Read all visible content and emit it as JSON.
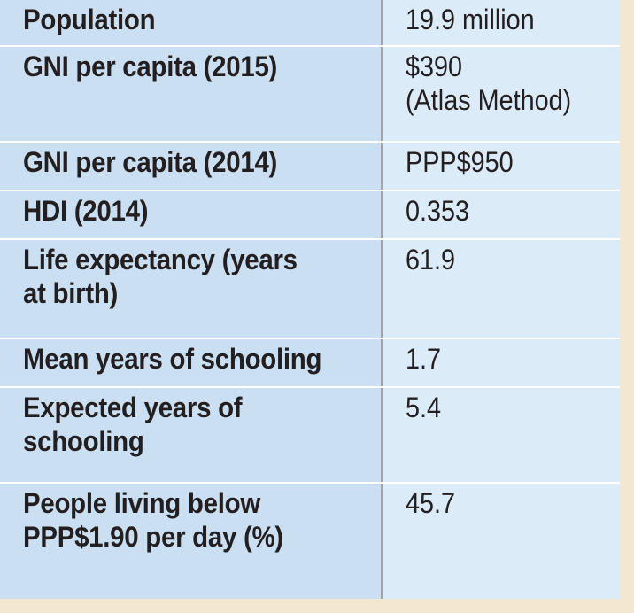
{
  "table": {
    "rows": [
      {
        "label": "Population",
        "value": "19.9 million"
      },
      {
        "label": "GNI per capita (2015)",
        "value": "$390\n(Atlas Method)"
      },
      {
        "label": "GNI per capita (2014)",
        "value": "PPP$950"
      },
      {
        "label": "HDI (2014)",
        "value": "0.353"
      },
      {
        "label": "Life expectancy (years\nat birth)",
        "value": "61.9"
      },
      {
        "label": "Mean years of schooling",
        "value": "1.7"
      },
      {
        "label": "Expected years of\nschooling",
        "value": "5.4"
      },
      {
        "label": "People living below\nPPP$1.90 per day (%)",
        "value": "45.7"
      }
    ]
  }
}
